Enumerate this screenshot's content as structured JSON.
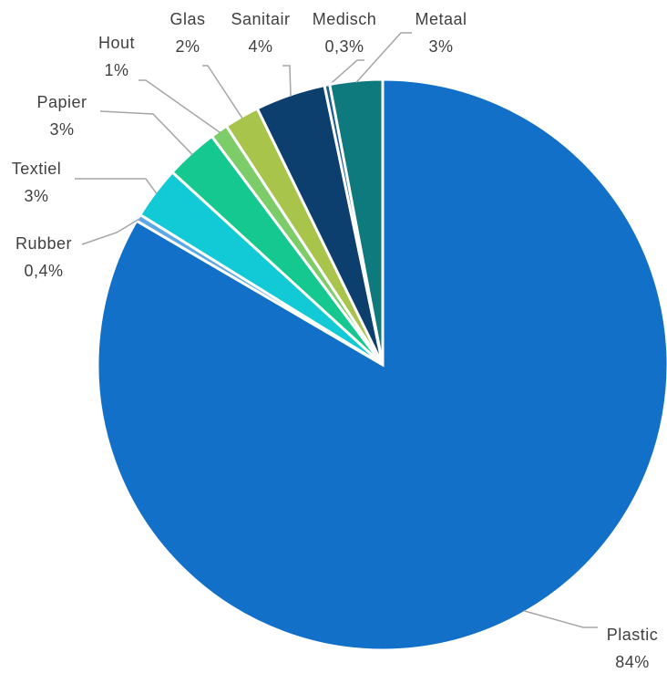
{
  "chart_data": {
    "type": "pie",
    "categories": [
      "Plastic",
      "Rubber",
      "Textiel",
      "Papier",
      "Hout",
      "Glas",
      "Sanitair",
      "Medisch",
      "Metaal"
    ],
    "values": [
      84,
      0.4,
      3,
      3,
      1,
      2,
      4,
      0.3,
      3
    ],
    "value_labels": [
      "84%",
      "0,4%",
      "3%",
      "3%",
      "1%",
      "2%",
      "4%",
      "0,3%",
      "3%"
    ],
    "colors": [
      "#1270c8",
      "#5aa9e6",
      "#12cad6",
      "#14c88f",
      "#7ccc6a",
      "#a8c44a",
      "#0c3f6e",
      "#1a5c8c",
      "#0e7a7e"
    ]
  }
}
